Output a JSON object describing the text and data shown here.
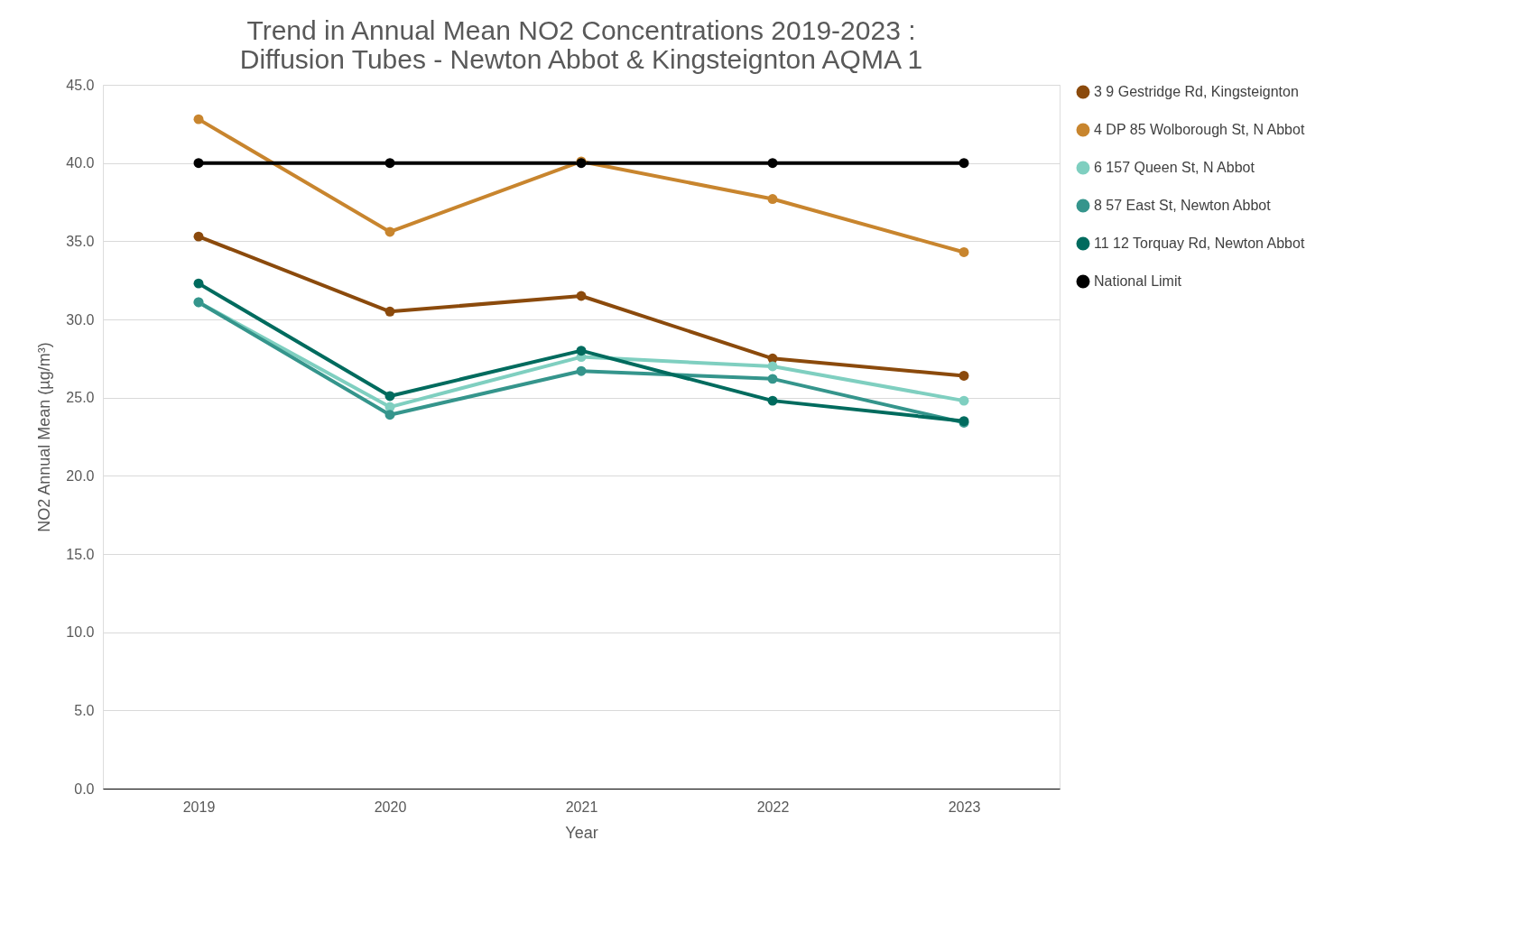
{
  "chart_data": {
    "type": "line",
    "title": [
      "Trend in Annual Mean NO2 Concentrations 2019-2023 :",
      "Diffusion Tubes - Newton Abbot & Kingsteignton AQMA 1"
    ],
    "xlabel": "Year",
    "ylabel": "NO2 Annual Mean (µg/m³)",
    "categories": [
      "2019",
      "2020",
      "2021",
      "2022",
      "2023"
    ],
    "series": [
      {
        "name": "3 9 Gestridge Rd, Kingsteignton",
        "color": "#8b4a0c",
        "values": [
          35.3,
          30.5,
          31.5,
          27.5,
          26.4
        ]
      },
      {
        "name": "4 DP 85 Wolborough St, N Abbot",
        "color": "#c8852e",
        "values": [
          42.8,
          35.6,
          40.1,
          37.7,
          34.3
        ]
      },
      {
        "name": "6 157 Queen St, N Abbot",
        "color": "#7fcfc0",
        "values": [
          31.1,
          24.4,
          27.6,
          27.0,
          24.8
        ]
      },
      {
        "name": "8 57 East St, Newton Abbot",
        "color": "#35958c",
        "values": [
          31.1,
          23.9,
          26.7,
          26.2,
          23.4
        ]
      },
      {
        "name": "11 12 Torquay Rd, Newton Abbot",
        "color": "#006b5e",
        "values": [
          32.3,
          25.1,
          28.0,
          24.8,
          23.5
        ]
      },
      {
        "name": "National Limit",
        "color": "#000000",
        "values": [
          40,
          40,
          40,
          40,
          40
        ]
      }
    ],
    "ylim": [
      0,
      45
    ],
    "yticks": [
      {
        "value": 0,
        "label": "0.0"
      },
      {
        "value": 5,
        "label": "5.0"
      },
      {
        "value": 10,
        "label": "10.0"
      },
      {
        "value": 15,
        "label": "15.0"
      },
      {
        "value": 20,
        "label": "20.0"
      },
      {
        "value": 25,
        "label": "25.0"
      },
      {
        "value": 30,
        "label": "30.0"
      },
      {
        "value": 35,
        "label": "35.0"
      },
      {
        "value": 40,
        "label": "40.0"
      },
      {
        "value": 45,
        "label": "45.0"
      }
    ],
    "grid": "y",
    "legend": "right",
    "marker": "circle",
    "line_style": "solid"
  }
}
